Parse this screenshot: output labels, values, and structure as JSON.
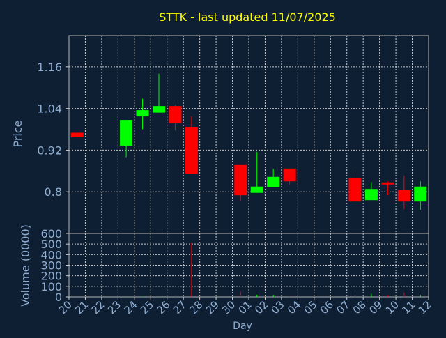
{
  "chart_data": {
    "type": "candlestick",
    "title": "STTK - last updated 11/07/2025",
    "xlabel": "Day",
    "ylabel_price": "Price",
    "ylabel_volume": "Volume (0000)",
    "x_tick_labels": [
      "20",
      "21",
      "22",
      "23",
      "24",
      "25",
      "26",
      "27",
      "28",
      "29",
      "30",
      "01",
      "02",
      "03",
      "04",
      "05",
      "06",
      "07",
      "08",
      "09",
      "10",
      "11",
      "12"
    ],
    "price_ticks": [
      "1.16",
      "1.04",
      "0.92",
      "0.8"
    ],
    "price_tick_values": [
      1.16,
      1.04,
      0.92,
      0.8
    ],
    "price_range": [
      0.68,
      1.25
    ],
    "volume_ticks": [
      "600",
      "500",
      "400",
      "300",
      "200",
      "100",
      "0"
    ],
    "volume_tick_values": [
      600,
      500,
      400,
      300,
      200,
      100,
      0
    ],
    "volume_range": [
      0,
      600
    ],
    "grid": true,
    "colors": {
      "background": "#0f1f33",
      "text": "#8faed1",
      "title": "#ffff00",
      "grid": "#c8c8c8",
      "up": "#00ff00",
      "down": "#ff0000"
    },
    "candles": [
      {
        "day": 0,
        "open": 0.97,
        "close": 0.957,
        "high": 0.97,
        "low": 0.957,
        "volume": 0
      },
      {
        "day": 3,
        "open": 0.933,
        "close": 1.007,
        "high": 1.007,
        "low": 0.9,
        "volume": 5
      },
      {
        "day": 4,
        "open": 1.017,
        "close": 1.035,
        "high": 1.068,
        "low": 0.98,
        "volume": 3
      },
      {
        "day": 5,
        "open": 1.028,
        "close": 1.047,
        "high": 1.14,
        "low": 1.028,
        "volume": 4
      },
      {
        "day": 6,
        "open": 1.047,
        "close": 0.997,
        "high": 1.05,
        "low": 0.977,
        "volume": 10
      },
      {
        "day": 7,
        "open": 0.987,
        "close": 0.852,
        "high": 1.017,
        "low": 0.852,
        "volume": 515
      },
      {
        "day": 10,
        "open": 0.877,
        "close": 0.79,
        "high": 0.877,
        "low": 0.774,
        "volume": 50
      },
      {
        "day": 11,
        "open": 0.797,
        "close": 0.815,
        "high": 0.915,
        "low": 0.797,
        "volume": 20
      },
      {
        "day": 12,
        "open": 0.814,
        "close": 0.843,
        "high": 0.866,
        "low": 0.814,
        "volume": 15
      },
      {
        "day": 13,
        "open": 0.867,
        "close": 0.83,
        "high": 0.867,
        "low": 0.82,
        "volume": 8
      },
      {
        "day": 17,
        "open": 0.839,
        "close": 0.772,
        "high": 0.862,
        "low": 0.772,
        "volume": 25
      },
      {
        "day": 18,
        "open": 0.776,
        "close": 0.808,
        "high": 0.828,
        "low": 0.776,
        "volume": 30
      },
      {
        "day": 19,
        "open": 0.827,
        "close": 0.823,
        "high": 0.83,
        "low": 0.79,
        "volume": 10
      },
      {
        "day": 20,
        "open": 0.805,
        "close": 0.772,
        "high": 0.846,
        "low": 0.75,
        "volume": 40
      },
      {
        "day": 21,
        "open": 0.772,
        "close": 0.815,
        "high": 0.83,
        "low": 0.748,
        "volume": 20
      }
    ]
  }
}
